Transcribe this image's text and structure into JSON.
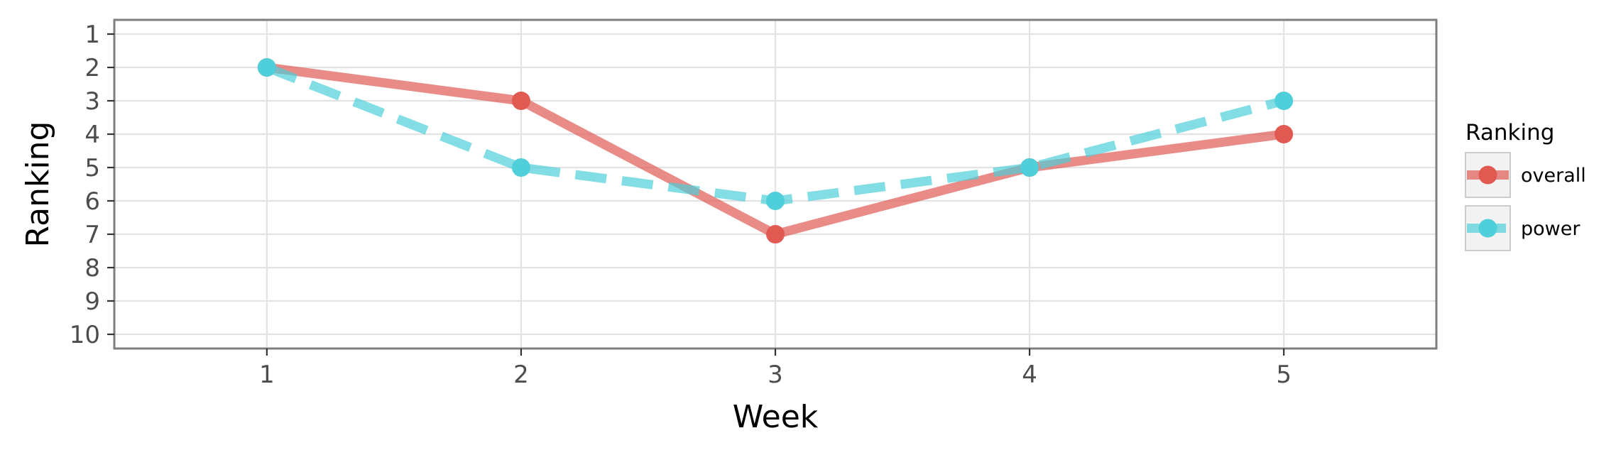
{
  "chart_data": {
    "type": "line",
    "x": [
      1,
      2,
      3,
      4,
      5
    ],
    "series": [
      {
        "name": "overall",
        "values": [
          2,
          3,
          7,
          5,
          4
        ],
        "color": "#e05a52",
        "line_style": "solid"
      },
      {
        "name": "power",
        "values": [
          2,
          5,
          6,
          5,
          3
        ],
        "color": "#4ecfd9",
        "line_style": "dashed"
      }
    ],
    "xlabel": "Week",
    "ylabel": "Ranking",
    "x_ticks": [
      "1",
      "2",
      "3",
      "4",
      "5"
    ],
    "y_ticks": [
      "1",
      "2",
      "3",
      "4",
      "5",
      "6",
      "7",
      "8",
      "9",
      "10"
    ],
    "xlim": [
      0.4,
      5.6
    ],
    "ylim": [
      1,
      10
    ],
    "y_reversed": true,
    "grid": true,
    "legend": {
      "title": "Ranking",
      "position": "right"
    }
  }
}
